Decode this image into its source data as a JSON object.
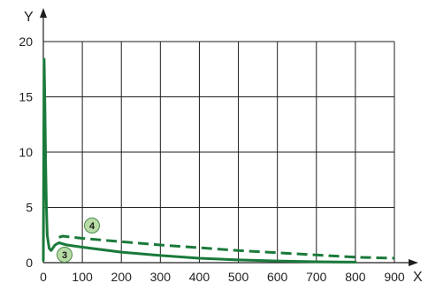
{
  "chart_data": {
    "type": "line",
    "title": "",
    "xlabel": "X",
    "ylabel": "Y",
    "xlim": [
      0,
      900
    ],
    "ylim": [
      0,
      20
    ],
    "x_ticks": [
      0,
      100,
      200,
      300,
      400,
      500,
      600,
      700,
      800,
      900
    ],
    "y_ticks": [
      0,
      5,
      10,
      15,
      20
    ],
    "grid": true,
    "legend": "none",
    "series_color": "#1a7a3a",
    "series": [
      {
        "marker": "3",
        "style": "solid",
        "x": [
          0,
          2,
          4,
          6,
          8,
          10,
          15,
          20,
          30,
          40,
          60,
          100,
          200,
          300,
          400,
          500,
          600,
          700,
          800
        ],
        "y": [
          0.2,
          18.4,
          14.0,
          9.0,
          5.0,
          2.5,
          1.3,
          1.1,
          1.6,
          1.8,
          1.6,
          1.4,
          0.95,
          0.65,
          0.4,
          0.25,
          0.15,
          0.08,
          0.05
        ]
      },
      {
        "marker": "4",
        "style": "dashed",
        "x": [
          40,
          50,
          100,
          200,
          300,
          400,
          500,
          600,
          700,
          800,
          900
        ],
        "y": [
          2.3,
          2.4,
          2.2,
          1.9,
          1.6,
          1.35,
          1.1,
          0.9,
          0.7,
          0.5,
          0.4
        ]
      }
    ]
  }
}
